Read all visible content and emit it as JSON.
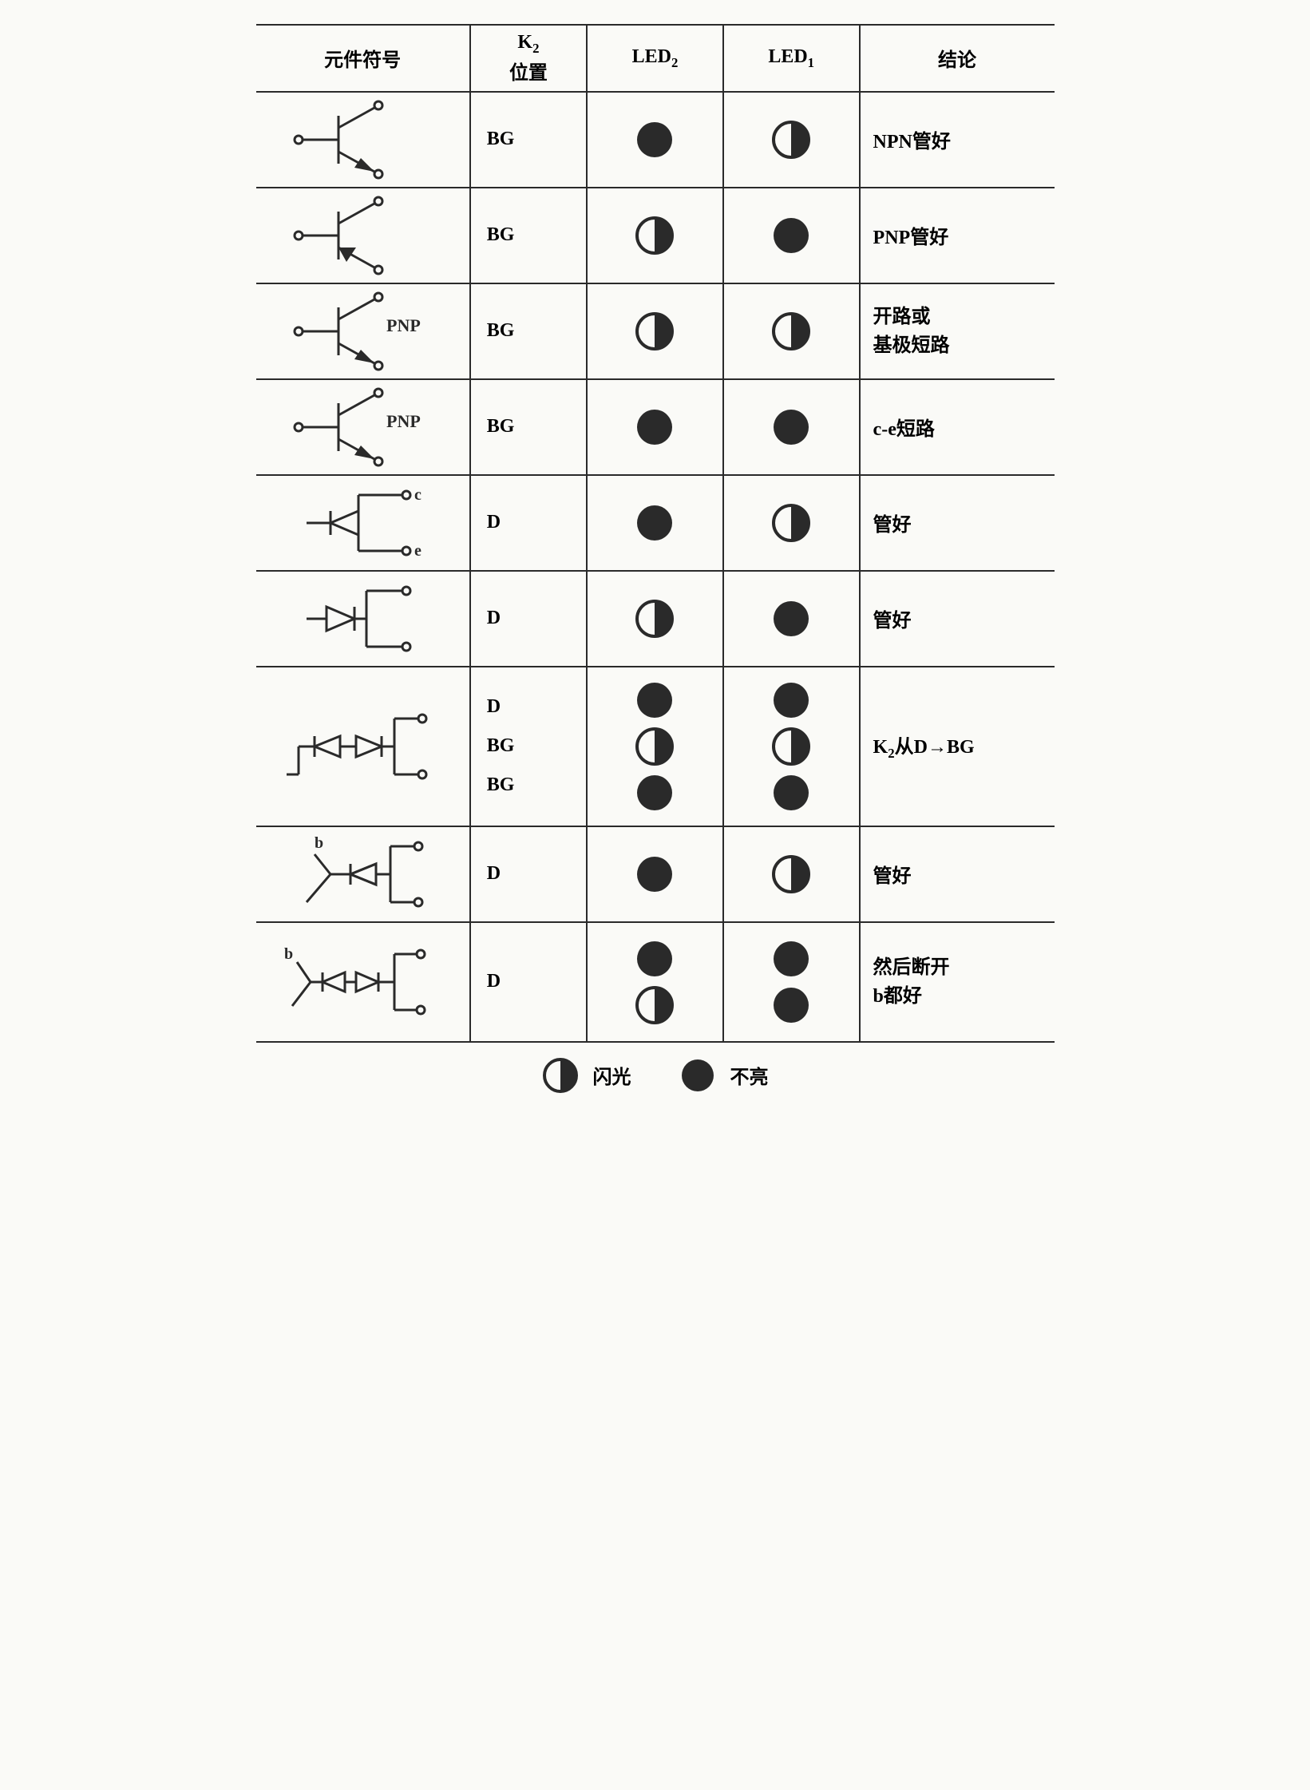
{
  "colors": {
    "stroke": "#2a2a2a",
    "fill_dark": "#2a2a2a",
    "bg": "#fafaf7"
  },
  "led_radius": 22,
  "headers": {
    "symbol": "元件符号",
    "k2_line1": "K",
    "k2_sub": "2",
    "k2_line2": "位置",
    "led2": "LED",
    "led2_sub": "2",
    "led1": "LED",
    "led1_sub": "1",
    "conclusion": "结论"
  },
  "rows": [
    {
      "symbol": "npn",
      "symbol_label": "",
      "k2": [
        "BG"
      ],
      "led2": [
        "solid"
      ],
      "led1": [
        "half"
      ],
      "conclusion": "NPN管好"
    },
    {
      "symbol": "pnp",
      "symbol_label": "",
      "k2": [
        "BG"
      ],
      "led2": [
        "half"
      ],
      "led1": [
        "solid"
      ],
      "conclusion": "PNP管好"
    },
    {
      "symbol": "npn",
      "symbol_label": "PNP",
      "k2": [
        "BG"
      ],
      "led2": [
        "half"
      ],
      "led1": [
        "half"
      ],
      "conclusion": "开路或\n基极短路"
    },
    {
      "symbol": "npn",
      "symbol_label": "PNP",
      "k2": [
        "BG"
      ],
      "led2": [
        "solid"
      ],
      "led1": [
        "solid"
      ],
      "conclusion": "c-e短路"
    },
    {
      "symbol": "diode_ce",
      "symbol_label": "",
      "k2": [
        "D"
      ],
      "led2": [
        "solid"
      ],
      "led1": [
        "half"
      ],
      "conclusion": "管好"
    },
    {
      "symbol": "diode_rev",
      "symbol_label": "",
      "k2": [
        "D"
      ],
      "led2": [
        "half"
      ],
      "led1": [
        "solid"
      ],
      "conclusion": "管好"
    },
    {
      "symbol": "dual_diode",
      "symbol_label": "",
      "k2": [
        "D",
        "BG",
        "BG"
      ],
      "led2": [
        "solid",
        "half",
        "solid"
      ],
      "led1": [
        "solid",
        "half",
        "solid"
      ],
      "conclusion": "K₂从D→BG",
      "tall": true
    },
    {
      "symbol": "diode_b",
      "symbol_label": "",
      "k2": [
        "D"
      ],
      "led2": [
        "solid"
      ],
      "led1": [
        "half"
      ],
      "conclusion": "管好"
    },
    {
      "symbol": "dual_diode_b",
      "symbol_label": "",
      "k2": [
        "D"
      ],
      "led2": [
        "solid",
        "half"
      ],
      "led1": [
        "solid",
        "solid"
      ],
      "conclusion": "然后断开\nb都好",
      "med": true
    }
  ],
  "legend": {
    "half_label": "闪光",
    "solid_label": "不亮"
  }
}
